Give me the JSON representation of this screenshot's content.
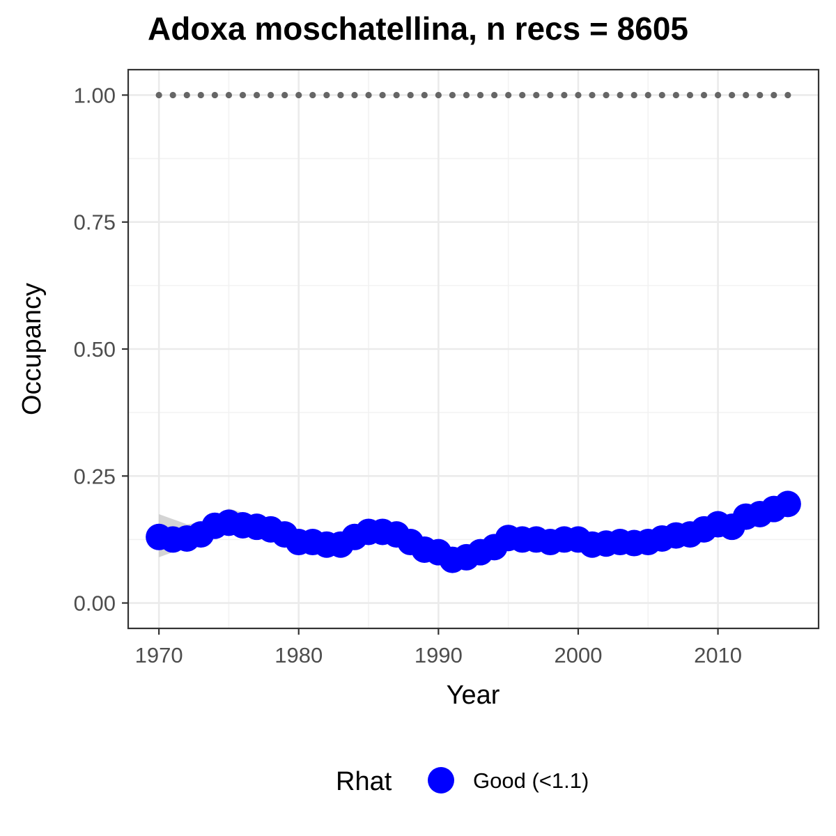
{
  "chart_data": {
    "type": "line",
    "title": "Adoxa moschatellina, n recs = 8605",
    "xlabel": "Year",
    "ylabel": "Occupancy",
    "xlim": [
      1967.8,
      2017.2
    ],
    "ylim": [
      -0.05,
      1.05
    ],
    "x_ticks": [
      1970,
      1980,
      1990,
      2000,
      2010
    ],
    "x_tick_labels": [
      "1970",
      "1980",
      "1990",
      "2000",
      "2010"
    ],
    "y_ticks": [
      0,
      0.25,
      0.5,
      0.75,
      1
    ],
    "y_tick_labels": [
      "0.00",
      "0.25",
      "0.50",
      "0.75",
      "1.00"
    ],
    "grid": true,
    "legend": {
      "title": "Rhat",
      "position": "bottom",
      "entries": [
        {
          "label": "Good (<1.1)",
          "color": "#0000ff"
        }
      ]
    },
    "series": [
      {
        "name": "Good (<1.1)",
        "color": "#0000ff",
        "x": [
          1970,
          1971,
          1972,
          1973,
          1974,
          1975,
          1976,
          1977,
          1978,
          1979,
          1980,
          1981,
          1982,
          1983,
          1984,
          1985,
          1986,
          1987,
          1988,
          1989,
          1990,
          1991,
          1992,
          1993,
          1994,
          1995,
          1996,
          1997,
          1998,
          1999,
          2000,
          2001,
          2002,
          2003,
          2004,
          2005,
          2006,
          2007,
          2008,
          2009,
          2010,
          2011,
          2012,
          2013,
          2014,
          2015
        ],
        "y": [
          0.13,
          0.125,
          0.127,
          0.135,
          0.152,
          0.158,
          0.153,
          0.15,
          0.145,
          0.135,
          0.12,
          0.12,
          0.115,
          0.115,
          0.13,
          0.14,
          0.14,
          0.135,
          0.12,
          0.105,
          0.1,
          0.085,
          0.09,
          0.1,
          0.11,
          0.128,
          0.125,
          0.125,
          0.12,
          0.125,
          0.125,
          0.115,
          0.117,
          0.12,
          0.118,
          0.12,
          0.127,
          0.133,
          0.135,
          0.145,
          0.155,
          0.15,
          0.17,
          0.175,
          0.185,
          0.195
        ],
        "ci_lower": [
          0.09,
          0.1,
          0.11,
          0.12,
          0.14,
          0.145,
          0.14,
          0.137,
          0.132,
          0.125,
          0.112,
          0.112,
          0.107,
          0.107,
          0.12,
          0.13,
          0.13,
          0.125,
          0.11,
          0.097,
          0.092,
          0.078,
          0.082,
          0.092,
          0.102,
          0.119,
          0.117,
          0.117,
          0.112,
          0.117,
          0.117,
          0.107,
          0.109,
          0.112,
          0.11,
          0.112,
          0.119,
          0.125,
          0.127,
          0.136,
          0.146,
          0.141,
          0.16,
          0.165,
          0.175,
          0.184
        ],
        "ci_upper": [
          0.175,
          0.165,
          0.155,
          0.158,
          0.172,
          0.186,
          0.178,
          0.169,
          0.161,
          0.148,
          0.128,
          0.128,
          0.123,
          0.123,
          0.14,
          0.15,
          0.15,
          0.145,
          0.13,
          0.113,
          0.108,
          0.092,
          0.098,
          0.108,
          0.118,
          0.137,
          0.133,
          0.133,
          0.128,
          0.133,
          0.133,
          0.123,
          0.125,
          0.128,
          0.126,
          0.128,
          0.135,
          0.141,
          0.143,
          0.154,
          0.164,
          0.159,
          0.18,
          0.185,
          0.195,
          0.206
        ]
      },
      {
        "name": "",
        "color": "#666666",
        "x": [
          1970,
          1971,
          1972,
          1973,
          1974,
          1975,
          1976,
          1977,
          1978,
          1979,
          1980,
          1981,
          1982,
          1983,
          1984,
          1985,
          1986,
          1987,
          1988,
          1989,
          1990,
          1991,
          1992,
          1993,
          1994,
          1995,
          1996,
          1997,
          1998,
          1999,
          2000,
          2001,
          2002,
          2003,
          2004,
          2005,
          2006,
          2007,
          2008,
          2009,
          2010,
          2011,
          2012,
          2013,
          2014,
          2015
        ],
        "y": [
          1,
          1,
          1,
          1,
          1,
          1,
          1,
          1,
          1,
          1,
          1,
          1,
          1,
          1,
          1,
          1,
          1,
          1,
          1,
          1,
          1,
          1,
          1,
          1,
          1,
          1,
          1,
          1,
          1,
          1,
          1,
          1,
          1,
          1,
          1,
          1,
          1,
          1,
          1,
          1,
          1,
          1,
          1,
          1,
          1,
          1
        ]
      }
    ]
  }
}
